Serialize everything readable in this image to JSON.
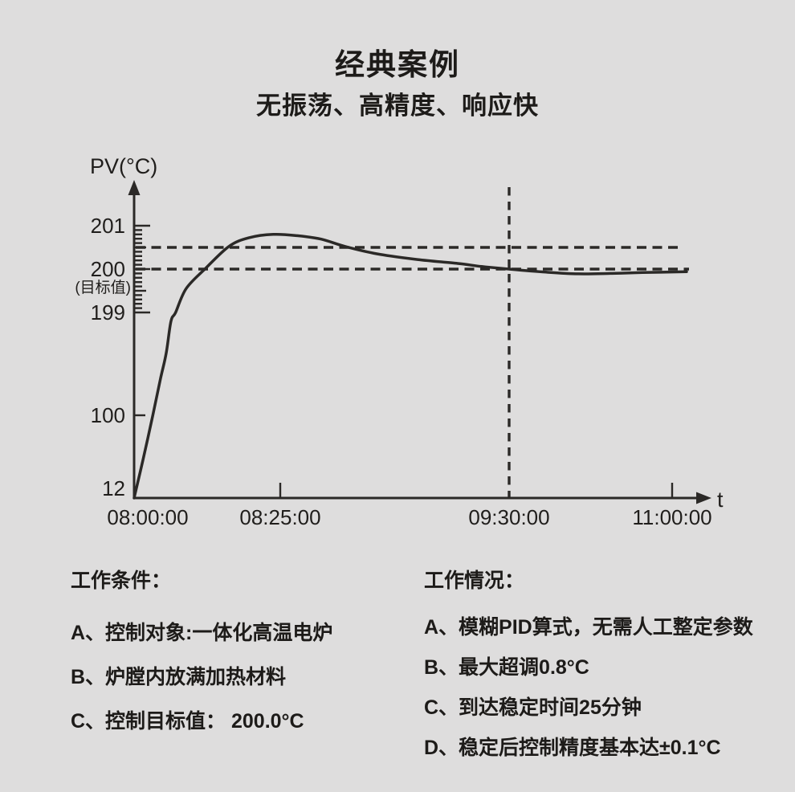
{
  "page": {
    "background": "#dedddd",
    "ink_color": "#2b2927",
    "text_color": "#1d1b19"
  },
  "title": "经典案例",
  "subtitle": "无振荡、高精度、响应快",
  "chart_data": {
    "type": "line",
    "title": "",
    "ylabel": "PV(°C)",
    "xlabel": "t",
    "grid": false,
    "legend": "none",
    "x_ticks": [
      "08:00:00",
      "08:25:00",
      "09:30:00",
      "11:00:00"
    ],
    "y_ticks": [
      "201",
      "200",
      "199",
      "100",
      "12"
    ],
    "y_ruler": {
      "from": 199,
      "to": 201,
      "minor_step": 0.1
    },
    "target": {
      "value": 200.0,
      "label": "(目标值)"
    },
    "annotations": {
      "overshoot_band_pv": 200.5,
      "target_line_pv": 200.0,
      "stable_vline_time": "09:30:00"
    },
    "series": [
      {
        "name": "PV",
        "x_unit": "minutes_since_first_tick",
        "points": [
          [
            0,
            12
          ],
          [
            1.5,
            52
          ],
          [
            3.2,
            100
          ],
          [
            4.5,
            135
          ],
          [
            5.5,
            160
          ],
          [
            6.3,
            190.5
          ],
          [
            7.1,
            199
          ],
          [
            8.9,
            199.55
          ],
          [
            12.1,
            200.0
          ],
          [
            16.2,
            200.52
          ],
          [
            19.6,
            200.72
          ],
          [
            23.8,
            200.8
          ],
          [
            29.8,
            200.77
          ],
          [
            36.6,
            200.69
          ],
          [
            43.5,
            200.52
          ],
          [
            52.6,
            200.35
          ],
          [
            64,
            200.22
          ],
          [
            75.4,
            200.13
          ],
          [
            82.2,
            200.06
          ],
          [
            90,
            200.0
          ],
          [
            110.4,
            199.93
          ],
          [
            128.1,
            199.89
          ],
          [
            145.9,
            199.9
          ],
          [
            163.6,
            199.92
          ],
          [
            188,
            199.94
          ]
        ]
      }
    ]
  },
  "conditions": {
    "header": "工作条件：",
    "items": [
      "A、控制对象:一体化高温电炉",
      "B、炉膛内放满加热材料",
      "C、控制目标值： 200.0°C"
    ]
  },
  "status": {
    "header": "工作情况：",
    "items": [
      "A、模糊PID算式，无需人工整定参数",
      "B、最大超调0.8°C",
      "C、到达稳定时间25分钟",
      "D、稳定后控制精度基本达±0.1°C"
    ]
  }
}
